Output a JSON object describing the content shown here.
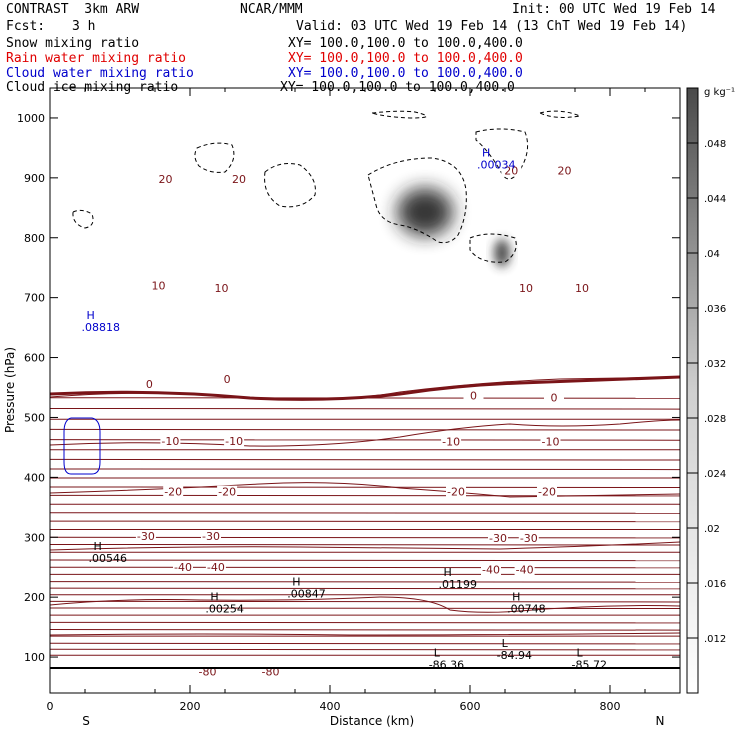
{
  "header": {
    "title": "CONTRAST  3km ARW",
    "org": "NCAR/MMM",
    "init": "Init: 00 UTC Wed 19 Feb 14",
    "fcst_label": "Fcst:",
    "fcst_value": "3 h",
    "valid": "Valid: 03 UTC Wed 19 Feb 14 (13 ChT Wed 19 Feb 14)"
  },
  "fields": [
    {
      "name": "Snow mixing ratio",
      "xy": "XY= 100.0,100.0 to 100.0,400.0",
      "color": "#000000"
    },
    {
      "name": "Rain water mixing ratio",
      "xy": "XY= 100.0,100.0 to 100.0,400.0",
      "color": "#e00000"
    },
    {
      "name": "Cloud water mixing ratio",
      "xy": "XY= 100.0,100.0 to 100.0,400.0",
      "color": "#0000cc"
    },
    {
      "name": "Cloud ice mixing ratio",
      "xy": "XY= 100.0,100.0 to 100.0,400.0",
      "color": "#000000"
    }
  ],
  "colors": {
    "temperature": "#7a1418",
    "cloud_water": "#0000cc",
    "ice": "#000000",
    "grid": "#000000"
  },
  "chart_data": {
    "type": "contour",
    "xlabel": "Distance (km)",
    "ylabel": "Pressure (hPa)",
    "xlim": [
      0,
      900
    ],
    "ylim": [
      1050,
      40
    ],
    "x_ticks": [
      0,
      200,
      400,
      600,
      800
    ],
    "y_ticks": [
      100,
      200,
      300,
      400,
      500,
      600,
      700,
      800,
      900,
      1000
    ],
    "direction_labels": {
      "left": "S",
      "right": "N"
    },
    "colorbar": {
      "unit": "g kg⁻¹",
      "ticks": [
        ".012",
        ".016",
        ".02",
        ".024",
        ".028",
        ".032",
        ".036",
        ".04",
        ".044",
        ".048"
      ]
    },
    "temperature_labels": [
      {
        "text": "-80",
        "x": 225,
        "p": 76
      },
      {
        "text": "-80",
        "x": 315,
        "p": 76
      },
      {
        "text": "-40",
        "x": 190,
        "p": 250
      },
      {
        "text": "-40",
        "x": 237,
        "p": 250
      },
      {
        "text": "-40",
        "x": 630,
        "p": 246
      },
      {
        "text": "-40",
        "x": 678,
        "p": 246
      },
      {
        "text": "-30",
        "x": 137,
        "p": 302
      },
      {
        "text": "-30",
        "x": 230,
        "p": 302
      },
      {
        "text": "-30",
        "x": 640,
        "p": 299
      },
      {
        "text": "-30",
        "x": 684,
        "p": 299
      },
      {
        "text": "-20",
        "x": 176,
        "p": 376
      },
      {
        "text": "-20",
        "x": 253,
        "p": 376
      },
      {
        "text": "-20",
        "x": 580,
        "p": 376
      },
      {
        "text": "-20",
        "x": 710,
        "p": 376
      },
      {
        "text": "-10",
        "x": 172,
        "p": 461
      },
      {
        "text": "-10",
        "x": 263,
        "p": 461
      },
      {
        "text": "-10",
        "x": 573,
        "p": 460
      },
      {
        "text": "-10",
        "x": 715,
        "p": 460
      },
      {
        "text": "0",
        "x": 142,
        "p": 556
      },
      {
        "text": "0",
        "x": 253,
        "p": 564
      },
      {
        "text": "0",
        "x": 605,
        "p": 537
      },
      {
        "text": "0",
        "x": 720,
        "p": 533
      },
      {
        "text": "10",
        "x": 155,
        "p": 720
      },
      {
        "text": "10",
        "x": 245,
        "p": 716
      },
      {
        "text": "10",
        "x": 680,
        "p": 716
      },
      {
        "text": "10",
        "x": 760,
        "p": 716
      },
      {
        "text": "20",
        "x": 165,
        "p": 898
      },
      {
        "text": "20",
        "x": 270,
        "p": 898
      },
      {
        "text": "20",
        "x": 659,
        "p": 912
      },
      {
        "text": "20",
        "x": 735,
        "p": 912
      }
    ],
    "extrema": [
      {
        "kind": "L",
        "value": "-86.36",
        "x": 541,
        "p": 84,
        "color": "ice"
      },
      {
        "kind": "L",
        "value": "-84.94",
        "x": 638,
        "p": 100,
        "color": "ice"
      },
      {
        "kind": "L",
        "value": "-85.72",
        "x": 745,
        "p": 84,
        "color": "ice"
      },
      {
        "kind": "H",
        "value": ".00254",
        "x": 222,
        "p": 178,
        "color": "ice"
      },
      {
        "kind": "H",
        "value": ".00847",
        "x": 339,
        "p": 203,
        "color": "ice"
      },
      {
        "kind": "H",
        "value": ".00748",
        "x": 653,
        "p": 178,
        "color": "ice"
      },
      {
        "kind": "H",
        "value": ".00546",
        "x": 55,
        "p": 262,
        "color": "ice"
      },
      {
        "kind": "H",
        "value": ".01199",
        "x": 555,
        "p": 219,
        "color": "ice"
      },
      {
        "kind": "H",
        "value": ".08818",
        "x": 45,
        "p": 648,
        "color": "cloud_water"
      },
      {
        "kind": "H",
        "value": ".00034",
        "x": 610,
        "p": 919,
        "color": "cloud_water"
      }
    ]
  }
}
